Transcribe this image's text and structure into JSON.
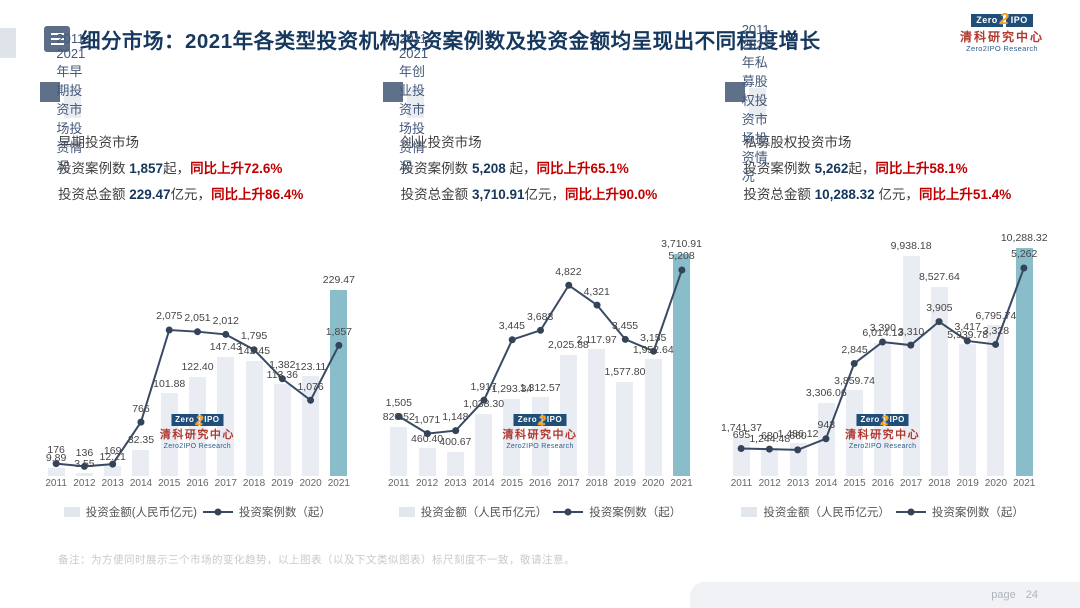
{
  "slide": {
    "title": "细分市场：2021年各类型投资机构投资案例数及投资金额均呈现出不同程度增长",
    "footnote": "备注：为方便同时展示三个市场的变化趋势，以上图表（以及下文类似图表）标尺刻度不一致，敬请注意。",
    "page_label": "page",
    "page_number": "24"
  },
  "logo": {
    "zero": "Zero",
    "two": "2",
    "ipo": "IPO",
    "cn": "清科研究中心",
    "en": "Zero2IPO Research"
  },
  "colors": {
    "accent_teal": "#8abdca",
    "bar_gray": "#e9ecf2",
    "line_navy": "#3a4a63",
    "red": "#c00000",
    "navy_text": "#17365d",
    "panel_header_bg": "#e9edf2",
    "panel_header_text": "#44597c",
    "square": "#5f7089"
  },
  "panels": [
    {
      "header": "2011-2021年早期投资市场投资情况",
      "market": "早期投资市场",
      "cases_prefix": "投资案例数 ",
      "cases_value": "1,857",
      "cases_unit": "起，",
      "cases_growth": "同比上升72.6%",
      "amount_prefix": "投资总金额 ",
      "amount_value": "229.47",
      "amount_unit": "亿元，",
      "amount_growth": "同比上升86.4%",
      "legend_bar": "投资金额(人民币亿元)",
      "legend_line": "投资案例数（起）"
    },
    {
      "header": "2011-2021年创业投资市场投资情况",
      "market": "创业投资市场",
      "cases_prefix": "投资案例数 ",
      "cases_value": "5,208",
      "cases_unit": " 起，",
      "cases_growth": "同比上升65.1%",
      "amount_prefix": "投资总金额 ",
      "amount_value": "3,710.91",
      "amount_unit": "亿元，",
      "amount_growth": "同比上升90.0%",
      "legend_bar": "投资金额（人民币亿元）",
      "legend_line": "投资案例数（起）"
    },
    {
      "header": "2011-2021年私募股权投资市场投资情况",
      "market": "私募股权投资市场",
      "cases_prefix": "投资案例数 ",
      "cases_value": "5,262",
      "cases_unit": "起，",
      "cases_growth": "同比上升58.1%",
      "amount_prefix": "投资总金额 ",
      "amount_value": "10,288.32",
      "amount_unit": " 亿元，",
      "amount_growth": "同比上升51.4%",
      "legend_bar": "投资金额（人民币亿元）",
      "legend_line": "投资案例数（起）"
    }
  ],
  "chart_data": [
    {
      "type": "bar-line-combo",
      "title": "2011-2021年早期投资市场投资情况",
      "categories": [
        "2011",
        "2012",
        "2013",
        "2014",
        "2015",
        "2016",
        "2017",
        "2018",
        "2019",
        "2020",
        "2021"
      ],
      "series": [
        {
          "name": "投资金额(人民币亿元)",
          "type": "bar",
          "values": [
            9.89,
            3.55,
            12.21,
            32.35,
            101.88,
            122.4,
            147.43,
            142.45,
            113.36,
            123.11,
            229.47
          ],
          "labels": [
            "9.89",
            "3.55",
            "12.21",
            "32.35",
            "101.88",
            "122.40",
            "147.43",
            "142.45",
            "113.36",
            "123.11",
            "229.47"
          ]
        },
        {
          "name": "投资案例数（起）",
          "type": "line",
          "values": [
            176,
            136,
            169,
            766,
            2075,
            2051,
            2012,
            1795,
            1382,
            1076,
            1857
          ],
          "labels": [
            "176",
            "136",
            "169",
            "766",
            "2,075",
            "2,051",
            "2,012",
            "1,795",
            "1,382",
            "1,076",
            "1,857"
          ]
        }
      ],
      "xlabel": "",
      "ylabel": "",
      "grid": false,
      "legend_position": "bottom",
      "highlight_category": "2021",
      "axes_hidden": true
    },
    {
      "type": "bar-line-combo",
      "title": "2011-2021年创业投资市场投资情况",
      "categories": [
        "2011",
        "2012",
        "2013",
        "2014",
        "2015",
        "2016",
        "2017",
        "2018",
        "2019",
        "2020",
        "2021"
      ],
      "series": [
        {
          "name": "投资金额（人民币亿元）",
          "type": "bar",
          "values": [
            820.52,
            460.4,
            400.67,
            1038.3,
            1293.34,
            1312.57,
            2025.88,
            2117.97,
            1577.8,
            1952.64,
            3710.91
          ],
          "labels": [
            "820.52",
            "460.40",
            "400.67",
            "1,038.30",
            "1,293.34",
            "1,312.57",
            "2,025.88",
            "2,117.97",
            "1,577.80",
            "1,952.64",
            "3,710.91"
          ]
        },
        {
          "name": "投资案例数（起）",
          "type": "line",
          "values": [
            1505,
            1071,
            1148,
            1917,
            3445,
            3683,
            4822,
            4321,
            3455,
            3155,
            5208
          ],
          "labels": [
            "1,505",
            "1,071",
            "1,148",
            "1,917",
            "3,445",
            "3,683",
            "4,822",
            "4,321",
            "3,455",
            "3,155",
            "5,208"
          ]
        }
      ],
      "xlabel": "",
      "ylabel": "",
      "grid": false,
      "legend_position": "bottom",
      "highlight_category": "2021",
      "axes_hidden": true
    },
    {
      "type": "bar-line-combo",
      "title": "2011-2021年私募股权投资市场投资情况",
      "categories": [
        "2011",
        "2012",
        "2013",
        "2014",
        "2015",
        "2016",
        "2017",
        "2018",
        "2019",
        "2020",
        "2021"
      ],
      "series": [
        {
          "name": "投资金额（人民币亿元）",
          "type": "bar",
          "values": [
            1741.37,
            1244.48,
            1486.12,
            3306.06,
            3859.74,
            6014.13,
            9938.18,
            8527.64,
            5939.78,
            6795.74,
            10288.32
          ],
          "labels": [
            "1,741.37",
            "1,244.48",
            "1,486.12",
            "3,306.06",
            "3,859.74",
            "6,014.13",
            "9,938.18",
            "8,527.64",
            "5,939.78",
            "6,795.74",
            "10,288.32"
          ]
        },
        {
          "name": "投资案例数（起）",
          "type": "line",
          "values": [
            695,
            680,
            660,
            943,
            2845,
            3390,
            3310,
            3905,
            3417,
            3328,
            5262
          ],
          "labels": [
            "695",
            "680",
            "660",
            "943",
            "2,845",
            "3,390",
            "3,310",
            "3,905",
            "3,417",
            "3,328",
            "5,262"
          ]
        }
      ],
      "xlabel": "",
      "ylabel": "",
      "grid": false,
      "legend_position": "bottom",
      "highlight_category": "2021",
      "axes_hidden": true
    }
  ]
}
